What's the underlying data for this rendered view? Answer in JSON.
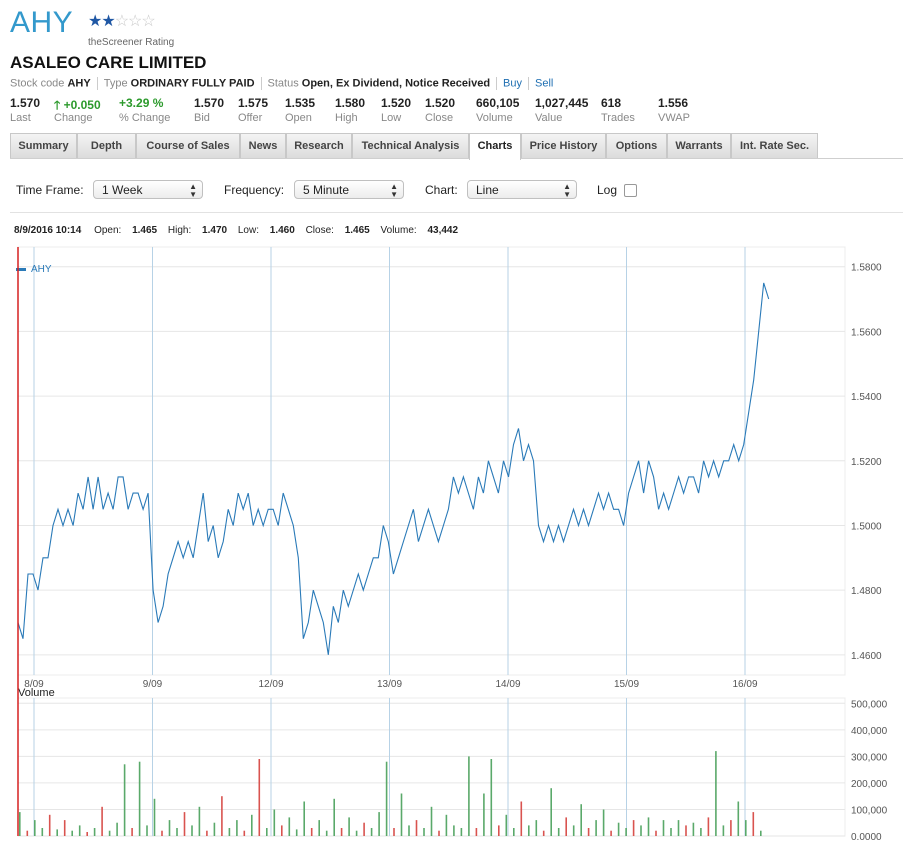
{
  "header": {
    "ticker": "AHY",
    "stars": [
      "★",
      "★",
      "☆",
      "☆",
      "☆"
    ],
    "rating_label": "theScreener Rating",
    "company": "ASALEO CARE LIMITED",
    "stock_code_label": "Stock code",
    "stock_code": "AHY",
    "type_label": "Type",
    "type": "ORDINARY FULLY PAID",
    "status_label": "Status",
    "status": "Open, Ex Dividend, Notice Received",
    "buy": "Buy",
    "sell": "Sell"
  },
  "stats": [
    {
      "value": "1.570",
      "label": "Last"
    },
    {
      "value": "+0.050",
      "label": "Change"
    },
    {
      "value": "+3.29 %",
      "label": "% Change"
    },
    {
      "value": "1.570",
      "label": "Bid"
    },
    {
      "value": "1.575",
      "label": "Offer"
    },
    {
      "value": "1.535",
      "label": "Open"
    },
    {
      "value": "1.580",
      "label": "High"
    },
    {
      "value": "1.520",
      "label": "Low"
    },
    {
      "value": "1.520",
      "label": "Close"
    },
    {
      "value": "660,105",
      "label": "Volume"
    },
    {
      "value": "1,027,445",
      "label": "Value"
    },
    {
      "value": "618",
      "label": "Trades"
    },
    {
      "value": "1.556",
      "label": "VWAP"
    }
  ],
  "tabs": [
    "Summary",
    "Depth",
    "Course of Sales",
    "News",
    "Research",
    "Technical Analysis",
    "Charts",
    "Price History",
    "Options",
    "Warrants",
    "Int. Rate Sec."
  ],
  "active_tab": "Charts",
  "controls": {
    "timeframe_label": "Time Frame:",
    "timeframe": "1 Week",
    "frequency_label": "Frequency:",
    "frequency": "5 Minute",
    "chart_label": "Chart:",
    "chart": "Line",
    "log_label": "Log"
  },
  "quote": {
    "datetime": "8/9/2016 10:14",
    "open_label": "Open:",
    "open": "1.465",
    "high_label": "High:",
    "high": "1.470",
    "low_label": "Low:",
    "low": "1.460",
    "close_label": "Close:",
    "close": "1.465",
    "volume_label": "Volume:",
    "volume": "43,442"
  },
  "colors": {
    "line": "#2a7ab8",
    "vol_up": "#5aa96a",
    "vol_down": "#d9534f",
    "grid": "#e6e6e6",
    "vgrid": "#b7d2e6",
    "cursor": "#d62020",
    "accent": "#3399cc"
  },
  "chart_data": [
    {
      "type": "line",
      "legend": "AHY",
      "legend_position": "top-left",
      "x_labels": [
        "8/09",
        "9/09",
        "12/09",
        "13/09",
        "14/09",
        "15/09",
        "16/09"
      ],
      "ylim": [
        1.455,
        1.583
      ],
      "y_ticks": [
        1.46,
        1.48,
        1.5,
        1.52,
        1.54,
        1.56,
        1.58
      ],
      "y_tick_labels": [
        "1.4600",
        "1.4800",
        "1.5000",
        "1.5200",
        "1.5400",
        "1.5600",
        "1.5800"
      ],
      "y_axis_side": "right",
      "grid": true,
      "x_day_span": [
        0,
        6.2
      ],
      "values": [
        1.47,
        1.465,
        1.485,
        1.485,
        1.48,
        1.49,
        1.49,
        1.5,
        1.505,
        1.5,
        1.505,
        1.5,
        1.51,
        1.505,
        1.515,
        1.505,
        1.515,
        1.505,
        1.51,
        1.505,
        1.515,
        1.515,
        1.505,
        1.51,
        1.51,
        1.505,
        1.51,
        1.48,
        1.47,
        1.475,
        1.485,
        1.49,
        1.495,
        1.49,
        1.495,
        1.49,
        1.5,
        1.51,
        1.495,
        1.5,
        1.49,
        1.495,
        1.505,
        1.5,
        1.51,
        1.505,
        1.51,
        1.5,
        1.505,
        1.5,
        1.505,
        1.505,
        1.5,
        1.51,
        1.505,
        1.5,
        1.49,
        1.465,
        1.47,
        1.48,
        1.475,
        1.47,
        1.46,
        1.475,
        1.47,
        1.48,
        1.475,
        1.48,
        1.485,
        1.48,
        1.485,
        1.49,
        1.49,
        1.5,
        1.495,
        1.485,
        1.49,
        1.495,
        1.5,
        1.505,
        1.495,
        1.5,
        1.505,
        1.5,
        1.495,
        1.5,
        1.505,
        1.515,
        1.51,
        1.515,
        1.51,
        1.505,
        1.515,
        1.51,
        1.52,
        1.515,
        1.51,
        1.52,
        1.515,
        1.525,
        1.53,
        1.52,
        1.525,
        1.52,
        1.5,
        1.495,
        1.5,
        1.495,
        1.5,
        1.495,
        1.5,
        1.505,
        1.5,
        1.505,
        1.5,
        1.505,
        1.51,
        1.505,
        1.51,
        1.505,
        1.505,
        1.5,
        1.51,
        1.515,
        1.52,
        1.51,
        1.52,
        1.515,
        1.505,
        1.51,
        1.505,
        1.51,
        1.515,
        1.51,
        1.515,
        1.515,
        1.51,
        1.52,
        1.515,
        1.52,
        1.515,
        1.52,
        1.52,
        1.525,
        1.52,
        1.525,
        1.535,
        1.545,
        1.56,
        1.575,
        1.57
      ]
    },
    {
      "type": "bar",
      "title": "Volume",
      "ylim": [
        0,
        520000
      ],
      "y_ticks": [
        0,
        100000,
        200000,
        300000,
        400000,
        500000
      ],
      "y_tick_labels": [
        "0.0000",
        "100,000",
        "200,000",
        "300,000",
        "400,000",
        "500,000"
      ],
      "x_day_span": [
        0,
        6.2
      ],
      "bars": [
        {
          "v": 90000,
          "up": true
        },
        {
          "v": 20000,
          "up": false
        },
        {
          "v": 60000,
          "up": true
        },
        {
          "v": 30000,
          "up": true
        },
        {
          "v": 80000,
          "up": false
        },
        {
          "v": 25000,
          "up": true
        },
        {
          "v": 60000,
          "up": false
        },
        {
          "v": 20000,
          "up": true
        },
        {
          "v": 40000,
          "up": true
        },
        {
          "v": 15000,
          "up": false
        },
        {
          "v": 30000,
          "up": true
        },
        {
          "v": 110000,
          "up": false
        },
        {
          "v": 20000,
          "up": true
        },
        {
          "v": 50000,
          "up": true
        },
        {
          "v": 270000,
          "up": true
        },
        {
          "v": 30000,
          "up": false
        },
        {
          "v": 280000,
          "up": true
        },
        {
          "v": 40000,
          "up": true
        },
        {
          "v": 140000,
          "up": true
        },
        {
          "v": 20000,
          "up": false
        },
        {
          "v": 60000,
          "up": true
        },
        {
          "v": 30000,
          "up": true
        },
        {
          "v": 90000,
          "up": false
        },
        {
          "v": 40000,
          "up": true
        },
        {
          "v": 110000,
          "up": true
        },
        {
          "v": 20000,
          "up": false
        },
        {
          "v": 50000,
          "up": true
        },
        {
          "v": 150000,
          "up": false
        },
        {
          "v": 30000,
          "up": true
        },
        {
          "v": 60000,
          "up": true
        },
        {
          "v": 20000,
          "up": false
        },
        {
          "v": 80000,
          "up": true
        },
        {
          "v": 290000,
          "up": false
        },
        {
          "v": 30000,
          "up": true
        },
        {
          "v": 100000,
          "up": true
        },
        {
          "v": 40000,
          "up": false
        },
        {
          "v": 70000,
          "up": true
        },
        {
          "v": 25000,
          "up": true
        },
        {
          "v": 130000,
          "up": true
        },
        {
          "v": 30000,
          "up": false
        },
        {
          "v": 60000,
          "up": true
        },
        {
          "v": 20000,
          "up": true
        },
        {
          "v": 140000,
          "up": true
        },
        {
          "v": 30000,
          "up": false
        },
        {
          "v": 70000,
          "up": true
        },
        {
          "v": 20000,
          "up": true
        },
        {
          "v": 50000,
          "up": false
        },
        {
          "v": 30000,
          "up": true
        },
        {
          "v": 90000,
          "up": true
        },
        {
          "v": 280000,
          "up": true
        },
        {
          "v": 30000,
          "up": false
        },
        {
          "v": 160000,
          "up": true
        },
        {
          "v": 40000,
          "up": true
        },
        {
          "v": 60000,
          "up": false
        },
        {
          "v": 30000,
          "up": true
        },
        {
          "v": 110000,
          "up": true
        },
        {
          "v": 20000,
          "up": false
        },
        {
          "v": 80000,
          "up": true
        },
        {
          "v": 40000,
          "up": true
        },
        {
          "v": 30000,
          "up": true
        },
        {
          "v": 300000,
          "up": true
        },
        {
          "v": 30000,
          "up": false
        },
        {
          "v": 160000,
          "up": true
        },
        {
          "v": 290000,
          "up": true
        },
        {
          "v": 40000,
          "up": false
        },
        {
          "v": 80000,
          "up": true
        },
        {
          "v": 30000,
          "up": true
        },
        {
          "v": 130000,
          "up": false
        },
        {
          "v": 40000,
          "up": true
        },
        {
          "v": 60000,
          "up": true
        },
        {
          "v": 20000,
          "up": false
        },
        {
          "v": 180000,
          "up": true
        },
        {
          "v": 30000,
          "up": true
        },
        {
          "v": 70000,
          "up": false
        },
        {
          "v": 40000,
          "up": true
        },
        {
          "v": 120000,
          "up": true
        },
        {
          "v": 30000,
          "up": false
        },
        {
          "v": 60000,
          "up": true
        },
        {
          "v": 100000,
          "up": true
        },
        {
          "v": 20000,
          "up": false
        },
        {
          "v": 50000,
          "up": true
        },
        {
          "v": 30000,
          "up": true
        },
        {
          "v": 60000,
          "up": false
        },
        {
          "v": 40000,
          "up": true
        },
        {
          "v": 70000,
          "up": true
        },
        {
          "v": 20000,
          "up": false
        },
        {
          "v": 60000,
          "up": true
        },
        {
          "v": 30000,
          "up": true
        },
        {
          "v": 60000,
          "up": true
        },
        {
          "v": 40000,
          "up": false
        },
        {
          "v": 50000,
          "up": true
        },
        {
          "v": 30000,
          "up": true
        },
        {
          "v": 70000,
          "up": false
        },
        {
          "v": 320000,
          "up": true
        },
        {
          "v": 40000,
          "up": true
        },
        {
          "v": 60000,
          "up": false
        },
        {
          "v": 130000,
          "up": true
        },
        {
          "v": 60000,
          "up": true
        },
        {
          "v": 90000,
          "up": false
        },
        {
          "v": 20000,
          "up": true
        }
      ]
    }
  ]
}
